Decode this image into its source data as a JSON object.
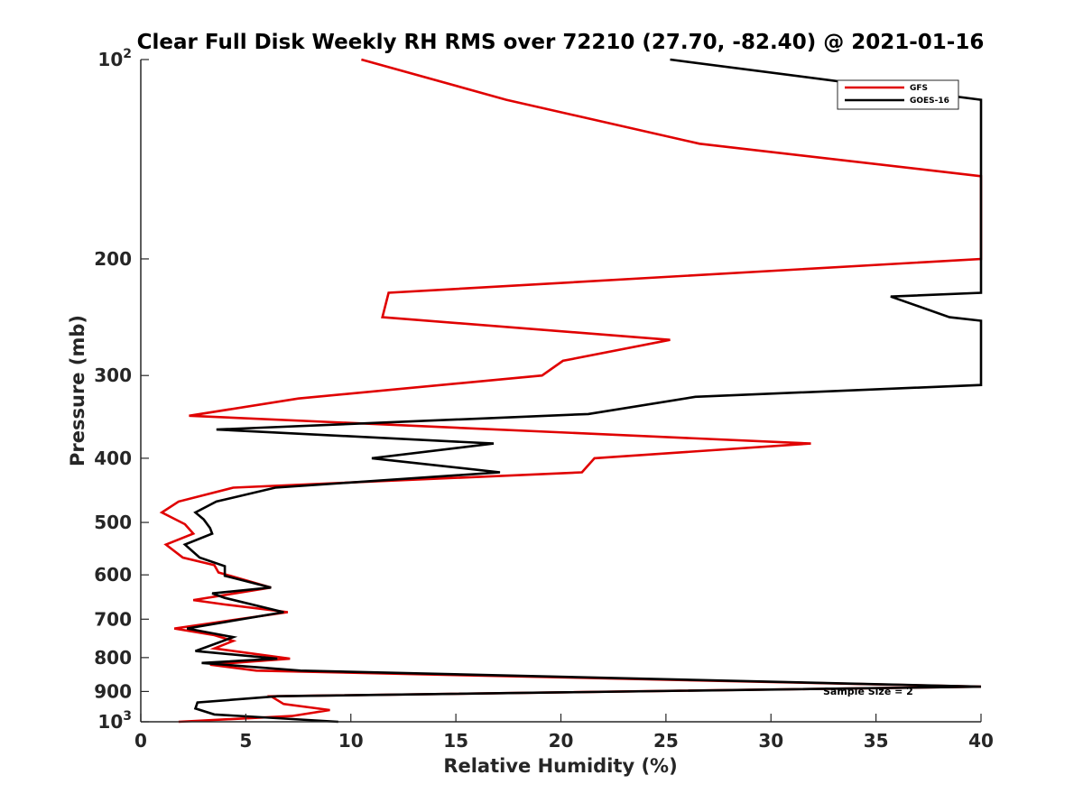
{
  "chart_data": {
    "type": "line",
    "title": "Clear Full Disk Weekly RH RMS over 72210 (27.70, -82.40) @ 2021-01-16",
    "xlabel": "Relative Humidity (%)",
    "ylabel": "Pressure (mb)",
    "xlim": [
      0,
      40
    ],
    "ylim": [
      100,
      1000
    ],
    "y_scale": "log",
    "y_reversed": true,
    "grid": false,
    "legend_position": "top-right",
    "x_ticks": [
      "0",
      "5",
      "10",
      "15",
      "20",
      "25",
      "30",
      "35",
      "40"
    ],
    "y_ticks": [
      {
        "value": 100,
        "base": "10",
        "exp": "2"
      },
      {
        "value": 200,
        "label": "200"
      },
      {
        "value": 300,
        "label": "300"
      },
      {
        "value": 400,
        "label": "400"
      },
      {
        "value": 500,
        "label": "500"
      },
      {
        "value": 600,
        "label": "600"
      },
      {
        "value": 700,
        "label": "700"
      },
      {
        "value": 800,
        "label": "800"
      },
      {
        "value": 900,
        "label": "900"
      },
      {
        "value": 1000,
        "base": "10",
        "exp": "3"
      }
    ],
    "annotation": "Sample Size = 2",
    "series": [
      {
        "name": "GFS",
        "color": "#e00000",
        "points": [
          [
            10.5,
            100
          ],
          [
            17.4,
            115
          ],
          [
            26.6,
            134
          ],
          [
            40,
            150
          ],
          [
            40,
            200
          ],
          [
            11.8,
            225
          ],
          [
            11.5,
            245
          ],
          [
            25.2,
            265
          ],
          [
            20.1,
            285
          ],
          [
            19.1,
            300
          ],
          [
            7.5,
            325
          ],
          [
            2.3,
            345
          ],
          [
            31.9,
            380
          ],
          [
            21.6,
            400
          ],
          [
            21.0,
            420
          ],
          [
            4.4,
            443
          ],
          [
            1.8,
            465
          ],
          [
            1.0,
            483
          ],
          [
            2.1,
            503
          ],
          [
            2.5,
            520
          ],
          [
            1.2,
            540
          ],
          [
            2.0,
            565
          ],
          [
            3.5,
            580
          ],
          [
            3.7,
            595
          ],
          [
            6.2,
            627
          ],
          [
            2.5,
            655
          ],
          [
            4.0,
            665
          ],
          [
            7.0,
            683
          ],
          [
            1.6,
            723
          ],
          [
            3.5,
            740
          ],
          [
            4.4,
            755
          ],
          [
            3.5,
            775
          ],
          [
            7.1,
            803
          ],
          [
            3.3,
            820
          ],
          [
            5.5,
            837
          ],
          [
            40,
            885
          ],
          [
            6.2,
            915
          ],
          [
            6.8,
            940
          ],
          [
            9.0,
            960
          ],
          [
            7.2,
            980
          ],
          [
            1.8,
            1000
          ]
        ]
      },
      {
        "name": "GOES-16",
        "color": "#000000",
        "points": [
          [
            25.2,
            100
          ],
          [
            40,
            115
          ],
          [
            40,
            225
          ],
          [
            35.7,
            228
          ],
          [
            38.5,
            245
          ],
          [
            40,
            248
          ],
          [
            40,
            310
          ],
          [
            26.4,
            323
          ],
          [
            21.3,
            343
          ],
          [
            3.6,
            362
          ],
          [
            16.8,
            380
          ],
          [
            11.0,
            400
          ],
          [
            17.1,
            420
          ],
          [
            6.4,
            443
          ],
          [
            3.6,
            465
          ],
          [
            2.6,
            483
          ],
          [
            3.0,
            495
          ],
          [
            3.3,
            510
          ],
          [
            3.4,
            520
          ],
          [
            2.1,
            540
          ],
          [
            2.8,
            565
          ],
          [
            4.0,
            582
          ],
          [
            4.0,
            602
          ],
          [
            6.2,
            627
          ],
          [
            3.4,
            640
          ],
          [
            4.0,
            650
          ],
          [
            6.8,
            683
          ],
          [
            2.2,
            723
          ],
          [
            4.4,
            745
          ],
          [
            2.6,
            782
          ],
          [
            6.5,
            803
          ],
          [
            2.9,
            815
          ],
          [
            7.6,
            837
          ],
          [
            40,
            885
          ],
          [
            6.5,
            915
          ],
          [
            2.7,
            935
          ],
          [
            2.6,
            955
          ],
          [
            3.5,
            975
          ],
          [
            9.4,
            1000
          ]
        ]
      }
    ]
  }
}
